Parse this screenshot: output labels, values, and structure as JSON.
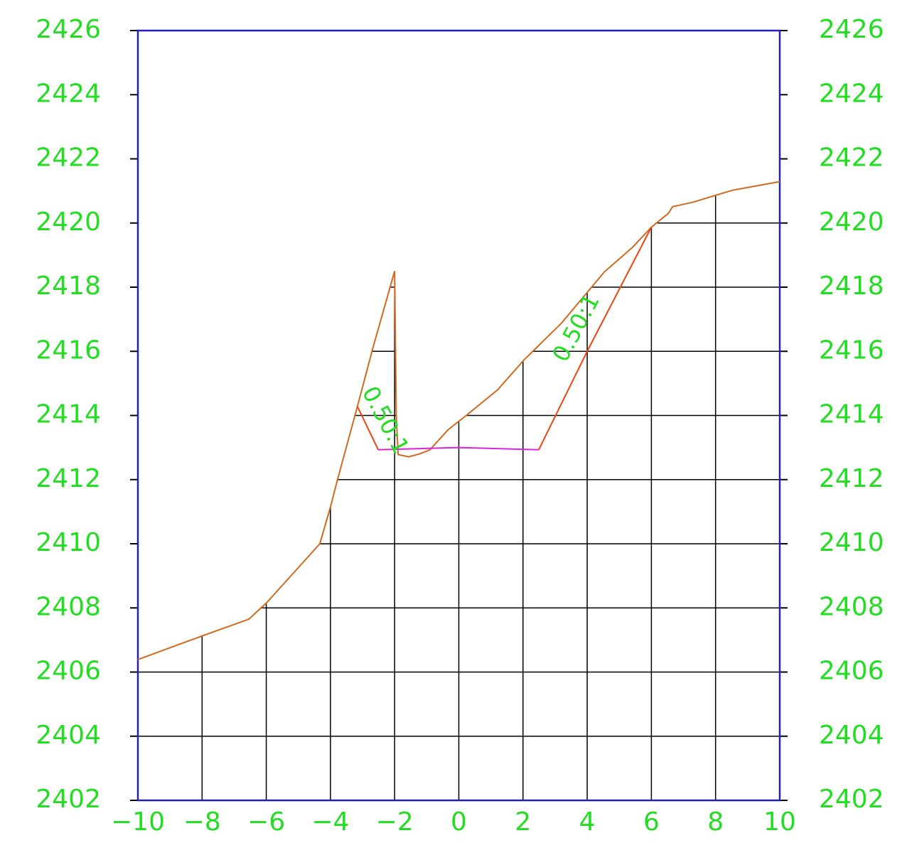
{
  "chart_data": {
    "type": "line",
    "xlim": [
      -10,
      10
    ],
    "ylim": [
      2402,
      2426
    ],
    "xticks": [
      {
        "value": -10,
        "label": "−10"
      },
      {
        "value": -8,
        "label": "−8"
      },
      {
        "value": -6,
        "label": "−6"
      },
      {
        "value": -4,
        "label": "−4"
      },
      {
        "value": -2,
        "label": "−2"
      },
      0,
      2,
      4,
      6,
      8,
      10
    ],
    "yticks": [
      2402,
      2404,
      2406,
      2408,
      2410,
      2412,
      2414,
      2416,
      2418,
      2420,
      2422,
      2424,
      2426
    ],
    "grid": true,
    "frame_color": "#2222bb",
    "label_color": "#22dd22",
    "series": [
      {
        "color": "#d2691e",
        "x": [
          -10,
          -7.96,
          -6.54,
          -5.99,
          -4.33,
          -3.98,
          -3.78,
          -3.16,
          -2.69,
          -2.0,
          -1.95,
          -1.89,
          -1.56,
          -1.23,
          -0.9,
          -0.34,
          0.28,
          1.21,
          2.03,
          3.2,
          4.53,
          5.42,
          6.0,
          6.53,
          6.66,
          7.3,
          8.52,
          10
        ],
        "values": [
          2406.39,
          2407.14,
          2407.65,
          2408.16,
          2410.0,
          2411.22,
          2412.0,
          2414.28,
          2416.06,
          2418.5,
          2414.0,
          2412.78,
          2412.71,
          2412.8,
          2412.93,
          2413.55,
          2414.04,
          2414.8,
          2415.73,
          2416.88,
          2418.47,
          2419.25,
          2419.87,
          2420.3,
          2420.51,
          2420.65,
          2421.02,
          2421.29
        ]
      },
      {
        "color": "#ee4411",
        "x": [
          -3.16,
          -2.51
        ],
        "values": [
          2414.28,
          2412.93
        ]
      },
      {
        "color": "#dd22dd",
        "x": [
          -2.51,
          0,
          2.49
        ],
        "values": [
          2412.93,
          2413.0,
          2412.93
        ]
      },
      {
        "color": "#ee4411",
        "x": [
          2.49,
          4.0,
          6.0
        ],
        "values": [
          2412.93,
          2416.0,
          2419.87
        ]
      }
    ],
    "annotations": [
      "0.50:1",
      "0.50:1"
    ]
  }
}
